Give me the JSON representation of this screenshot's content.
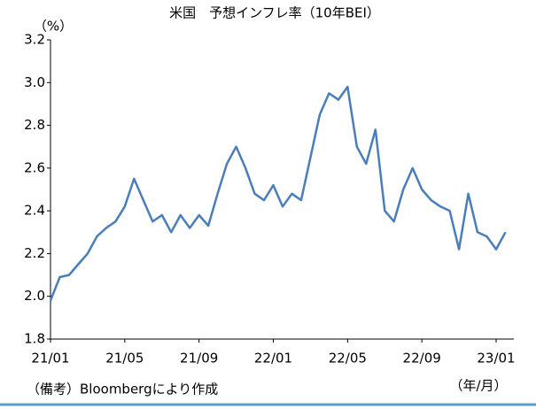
{
  "chart_data": {
    "type": "line",
    "title": "米国　予想インフレ率（10年BEI）",
    "y_label": "（%）",
    "x_label": "（年/月）",
    "note": "（備考）Bloombergにより作成",
    "categories": [
      "21/01",
      null,
      null,
      null,
      null,
      null,
      null,
      null,
      "21/05",
      null,
      null,
      null,
      null,
      null,
      null,
      null,
      "21/09",
      null,
      null,
      null,
      null,
      null,
      null,
      null,
      "22/01",
      null,
      null,
      null,
      null,
      null,
      null,
      null,
      "22/05",
      null,
      null,
      null,
      null,
      null,
      null,
      null,
      "22/09",
      null,
      null,
      null,
      null,
      null,
      null,
      null,
      "23/01",
      null
    ],
    "series": [
      {
        "name": "10年BEI",
        "color": "#4a7ebb",
        "values": [
          1.98,
          2.09,
          2.1,
          2.15,
          2.2,
          2.28,
          2.32,
          2.35,
          2.42,
          2.55,
          2.45,
          2.35,
          2.38,
          2.3,
          2.38,
          2.32,
          2.38,
          2.33,
          2.48,
          2.62,
          2.7,
          2.6,
          2.48,
          2.45,
          2.52,
          2.42,
          2.48,
          2.45,
          2.65,
          2.85,
          2.95,
          2.92,
          2.98,
          2.7,
          2.62,
          2.78,
          2.4,
          2.35,
          2.5,
          2.6,
          2.5,
          2.45,
          2.42,
          2.4,
          2.22,
          2.48,
          2.3,
          2.28,
          2.22,
          2.3
        ]
      }
    ],
    "ylim": [
      1.8,
      3.2
    ],
    "yticks": [
      1.8,
      {
        "value": 2,
        "label": "2.0"
      },
      2.2,
      2.4,
      2.6,
      2.8,
      {
        "value": 3,
        "label": "3.0"
      },
      3.2
    ]
  }
}
